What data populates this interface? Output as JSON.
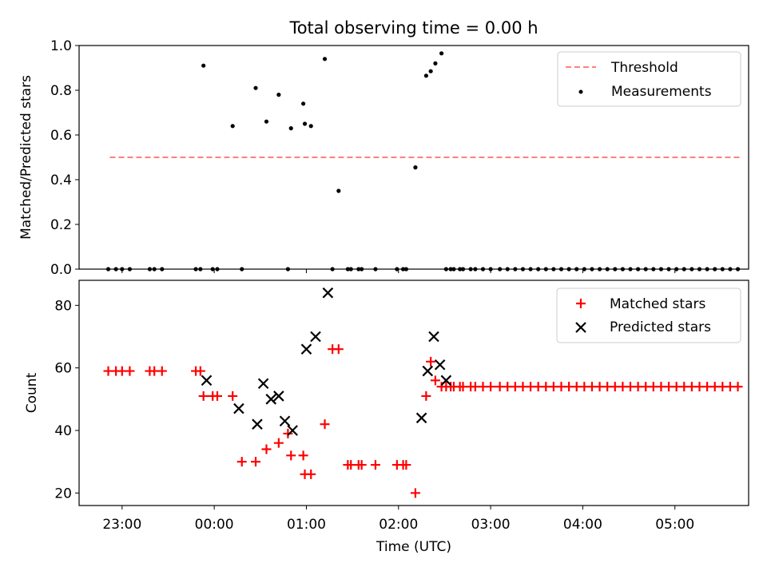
{
  "chart_data": [
    {
      "type": "scatter",
      "title": "Total observing time = 0.00 h",
      "ylabel": "Matched/Predicted stars",
      "xlabel": "",
      "xlim": [
        "22:32",
        "05:48"
      ],
      "ylim": [
        0,
        1.0
      ],
      "yticks": [
        0.0,
        0.2,
        0.4,
        0.6,
        0.8,
        1.0
      ],
      "ytick_labels": [
        "0.0",
        "0.2",
        "0.4",
        "0.6",
        "0.8",
        "1.0"
      ],
      "grid": false,
      "legend": "top-right",
      "threshold": {
        "name": "Threshold",
        "value": 0.5,
        "x_range": [
          "22:52",
          "05:44"
        ],
        "color": "#ff8080",
        "style": "dashed"
      },
      "series": [
        {
          "name": "Measurements",
          "color": "#000000",
          "x": [
            "22:51",
            "22:56",
            "23:00",
            "23:05",
            "23:18",
            "23:21",
            "23:26",
            "23:48",
            "23:51",
            "23:53",
            "23:59",
            "00:02",
            "00:12",
            "00:18",
            "00:27",
            "00:34",
            "00:42",
            "00:48",
            "00:50",
            "00:58",
            "00:59",
            "01:03",
            "01:12",
            "01:17",
            "01:21",
            "01:27",
            "01:29",
            "01:34",
            "01:36",
            "01:45",
            "01:59",
            "02:03",
            "02:05",
            "02:11",
            "02:18",
            "02:21",
            "02:24",
            "02:28",
            "02:31",
            "02:34",
            "02:36",
            "02:40",
            "02:42",
            "02:47",
            "02:50",
            "02:55",
            "03:00",
            "03:06",
            "03:11",
            "03:16",
            "03:21",
            "03:26",
            "03:31",
            "03:36",
            "03:41",
            "03:46",
            "03:51",
            "03:56",
            "04:01",
            "04:06",
            "04:11",
            "04:16",
            "04:21",
            "04:26",
            "04:31",
            "04:36",
            "04:41",
            "04:46",
            "04:51",
            "04:56",
            "05:01",
            "05:06",
            "05:11",
            "05:16",
            "05:21",
            "05:26",
            "05:31",
            "05:36",
            "05:41"
          ],
          "y": [
            0,
            0,
            0,
            0,
            0,
            0,
            0,
            0,
            0,
            0.91,
            0,
            0,
            0.64,
            0,
            0.81,
            0.66,
            0.78,
            0,
            0.63,
            0.74,
            0.65,
            0.64,
            0.94,
            0,
            0.35,
            0,
            0,
            0,
            0,
            0,
            0,
            0,
            0,
            0.455,
            0.865,
            0.885,
            0.92,
            0.965,
            0,
            0,
            0,
            0,
            0,
            0,
            0,
            0,
            0,
            0,
            0,
            0,
            0,
            0,
            0,
            0,
            0,
            0,
            0,
            0,
            0,
            0,
            0,
            0,
            0,
            0,
            0,
            0,
            0,
            0,
            0,
            0,
            0,
            0,
            0,
            0,
            0,
            0,
            0,
            0,
            0
          ]
        }
      ]
    },
    {
      "type": "scatter",
      "title": "",
      "ylabel": "Count",
      "xlabel": "Time (UTC)",
      "xlim": [
        "22:32",
        "05:48"
      ],
      "ylim": [
        16,
        88
      ],
      "xticks": [
        "23:00",
        "00:00",
        "01:00",
        "02:00",
        "03:00",
        "04:00",
        "05:00"
      ],
      "yticks": [
        20,
        40,
        60,
        80
      ],
      "ytick_labels": [
        "20",
        "40",
        "60",
        "80"
      ],
      "grid": false,
      "legend": "top-right",
      "series": [
        {
          "name": "Matched stars",
          "marker": "plus",
          "color": "#ff0000",
          "x": [
            "22:51",
            "22:56",
            "23:00",
            "23:05",
            "23:18",
            "23:21",
            "23:26",
            "23:48",
            "23:51",
            "23:53",
            "23:59",
            "00:02",
            "00:12",
            "00:18",
            "00:27",
            "00:34",
            "00:42",
            "00:48",
            "00:50",
            "00:58",
            "00:59",
            "01:03",
            "01:12",
            "01:17",
            "01:21",
            "01:27",
            "01:29",
            "01:34",
            "01:36",
            "01:45",
            "01:59",
            "02:03",
            "02:05",
            "02:11",
            "02:18",
            "02:21",
            "02:24",
            "02:28",
            "02:31",
            "02:34",
            "02:36",
            "02:40",
            "02:42",
            "02:47",
            "02:50",
            "02:55",
            "03:00",
            "03:06",
            "03:11",
            "03:16",
            "03:21",
            "03:26",
            "03:31",
            "03:36",
            "03:41",
            "03:46",
            "03:51",
            "03:56",
            "04:01",
            "04:06",
            "04:11",
            "04:16",
            "04:21",
            "04:26",
            "04:31",
            "04:36",
            "04:41",
            "04:46",
            "04:51",
            "04:56",
            "05:01",
            "05:06",
            "05:11",
            "05:16",
            "05:21",
            "05:26",
            "05:31",
            "05:36",
            "05:41"
          ],
          "y": [
            59,
            59,
            59,
            59,
            59,
            59,
            59,
            59,
            59,
            51,
            51,
            51,
            51,
            30,
            30,
            34,
            36,
            39,
            32,
            32,
            26,
            26,
            42,
            66,
            66,
            29,
            29,
            29,
            29,
            29,
            29,
            29,
            29,
            20,
            51,
            62,
            56,
            54,
            54,
            54,
            54,
            54,
            54,
            54,
            54,
            54,
            54,
            54,
            54,
            54,
            54,
            54,
            54,
            54,
            54,
            54,
            54,
            54,
            54,
            54,
            54,
            54,
            54,
            54,
            54,
            54,
            54,
            54,
            54,
            54,
            54,
            54,
            54,
            54,
            54,
            54,
            54,
            54,
            54
          ]
        },
        {
          "name": "Predicted stars",
          "marker": "x",
          "color": "#000000",
          "x": [
            "23:55",
            "00:16",
            "00:28",
            "00:32",
            "00:37",
            "00:42",
            "00:46",
            "00:51",
            "01:00",
            "01:06",
            "01:14",
            "02:15",
            "02:19",
            "02:23",
            "02:27",
            "02:31"
          ],
          "y": [
            56,
            47,
            42,
            55,
            50,
            51,
            43,
            40,
            66,
            70,
            84,
            44,
            59,
            70,
            61,
            56
          ]
        }
      ]
    }
  ]
}
